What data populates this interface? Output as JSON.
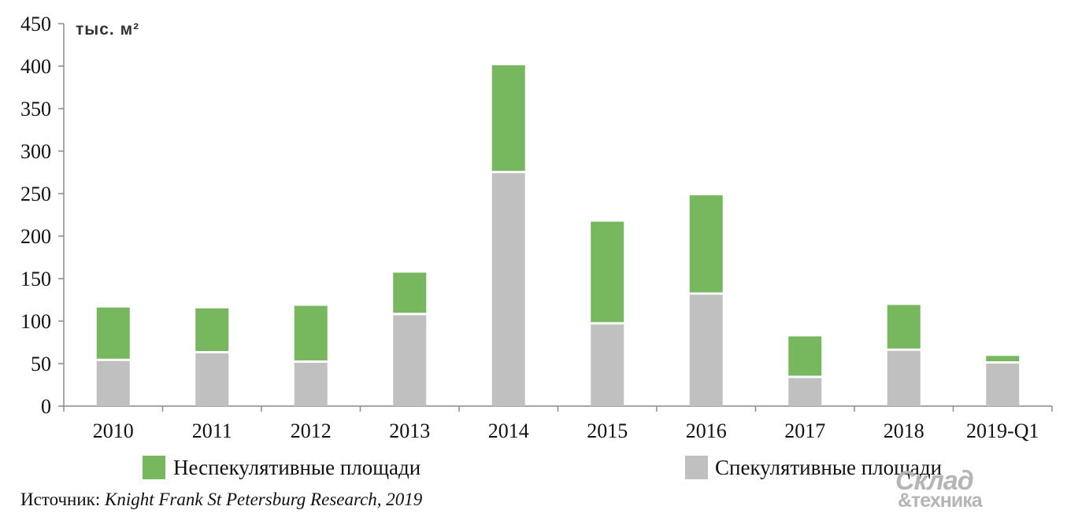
{
  "chart_data": {
    "type": "bar",
    "stacked": true,
    "unit_label": "тыс. м²",
    "categories": [
      "2010",
      "2011",
      "2012",
      "2013",
      "2014",
      "2015",
      "2016",
      "2017",
      "2018",
      "2019-Q1"
    ],
    "series": [
      {
        "name": "Спекулятивные площади",
        "color": "#c0c0c0",
        "values": [
          53,
          62,
          51,
          107,
          274,
          96,
          131,
          33,
          65,
          50
        ]
      },
      {
        "name": "Неспекулятивные площади",
        "color": "#77b75e",
        "values": [
          63,
          53,
          67,
          50,
          127,
          121,
          117,
          49,
          54,
          9
        ]
      }
    ],
    "ylim": [
      0,
      450
    ],
    "yticks": [
      0,
      50,
      100,
      150,
      200,
      250,
      300,
      350,
      400,
      450
    ],
    "grid": false,
    "legend": [
      {
        "label": "Неспекулятивные площади",
        "color": "#77b75e"
      },
      {
        "label": "Спекулятивные площади",
        "color": "#c0c0c0"
      }
    ],
    "legend_position": "bottom"
  },
  "source": {
    "prefix": "Источник: ",
    "text": "Knight Frank St Petersburg Research, 2019"
  },
  "watermark": {
    "line1": "Склад",
    "line2": "&техника"
  }
}
